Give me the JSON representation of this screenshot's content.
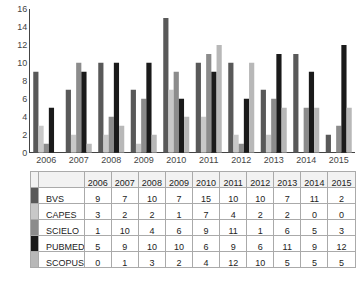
{
  "chart_data": {
    "type": "bar",
    "categories": [
      "2006",
      "2007",
      "2008",
      "2009",
      "2010",
      "2011",
      "2012",
      "2013",
      "2014",
      "2015"
    ],
    "series": [
      {
        "name": "BVS",
        "color": "#595959",
        "values": [
          9,
          7,
          10,
          7,
          15,
          10,
          10,
          7,
          11,
          2
        ]
      },
      {
        "name": "CAPES",
        "color": "#c8c8c8",
        "values": [
          3,
          2,
          2,
          1,
          7,
          4,
          2,
          2,
          0,
          0
        ]
      },
      {
        "name": "SCIELO",
        "color": "#8c8c8c",
        "values": [
          1,
          10,
          4,
          6,
          9,
          11,
          1,
          6,
          5,
          3
        ]
      },
      {
        "name": "PUBMED",
        "color": "#1a1a1a",
        "values": [
          5,
          9,
          10,
          10,
          6,
          9,
          6,
          11,
          9,
          12
        ]
      },
      {
        "name": "SCOPUS",
        "color": "#b8b8b8",
        "values": [
          0,
          1,
          3,
          2,
          4,
          12,
          10,
          5,
          5,
          5
        ]
      }
    ],
    "ylim": [
      0,
      16
    ],
    "yticks": [
      0,
      2,
      4,
      6,
      8,
      10,
      12,
      14,
      16
    ],
    "grid": false
  }
}
